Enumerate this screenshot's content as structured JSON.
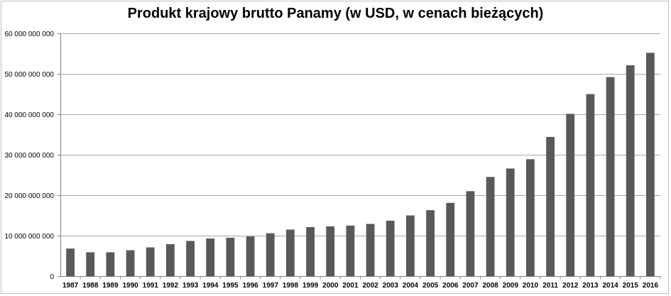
{
  "chart_data": {
    "type": "bar",
    "title": "Produkt krajowy brutto Panamy (w USD, w cenach bieżących)",
    "xlabel": "",
    "ylabel": "",
    "categories": [
      "1987",
      "1988",
      "1989",
      "1990",
      "1991",
      "1992",
      "1993",
      "1994",
      "1995",
      "1996",
      "1997",
      "1998",
      "1999",
      "2000",
      "2001",
      "2002",
      "2003",
      "2004",
      "2005",
      "2006",
      "2007",
      "2008",
      "2009",
      "2010",
      "2011",
      "2012",
      "2013",
      "2014",
      "2015",
      "2016"
    ],
    "series": [
      {
        "values": [
          6800000000,
          5900000000,
          5900000000,
          6400000000,
          7100000000,
          7900000000,
          8700000000,
          9300000000,
          9500000000,
          9800000000,
          10600000000,
          11500000000,
          12100000000,
          12300000000,
          12500000000,
          12900000000,
          13700000000,
          15000000000,
          16300000000,
          18100000000,
          21000000000,
          24500000000,
          26600000000,
          28900000000,
          34400000000,
          40100000000,
          45000000000,
          49200000000,
          52100000000,
          55200000000
        ],
        "color": "#595959"
      }
    ],
    "ylim": [
      0,
      60000000000
    ],
    "yticks": [
      0,
      10000000000,
      20000000000,
      30000000000,
      40000000000,
      50000000000,
      60000000000
    ],
    "ytick_labels": [
      "0",
      "10 000 000 000",
      "20 000 000 000",
      "30 000 000 000",
      "40 000 000 000",
      "50 000 000 000",
      "60 000 000 000"
    ],
    "grid": true,
    "legend": "none"
  }
}
